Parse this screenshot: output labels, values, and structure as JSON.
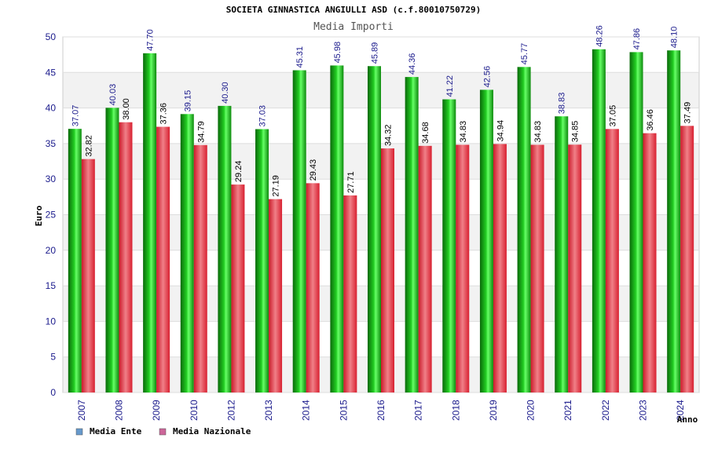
{
  "chart_data": {
    "type": "bar",
    "title": "SOCIETA GINNASTICA ANGIULLI ASD (c.f.80010750729)",
    "subtitle": "Media Importi",
    "ylabel": "Euro",
    "xlabel": "Anno",
    "ylim": [
      0,
      50
    ],
    "yticks": [
      0,
      5,
      10,
      15,
      20,
      25,
      30,
      35,
      40,
      45,
      50
    ],
    "grid": true,
    "legend_position": "bottom-left",
    "categories": [
      "2007",
      "2008",
      "2009",
      "2010",
      "2012",
      "2013",
      "2014",
      "2015",
      "2016",
      "2017",
      "2018",
      "2019",
      "2020",
      "2021",
      "2022",
      "2023",
      "2024"
    ],
    "series": [
      {
        "name": "Media Ente",
        "color": "#22aa22",
        "legend_color": "#6699cc",
        "values": [
          37.07,
          40.03,
          47.7,
          39.15,
          40.3,
          37.03,
          45.31,
          45.98,
          45.89,
          44.36,
          41.22,
          42.56,
          45.77,
          38.83,
          48.26,
          47.86,
          48.1
        ],
        "labels": [
          "37.07",
          "40.03",
          "47.70",
          "39.15",
          "40.30",
          "37.03",
          "45.31",
          "45.98",
          "45.89",
          "44.36",
          "41.22",
          "42.56",
          "45.77",
          "38.83",
          "48.26",
          "47.86",
          "48.10"
        ]
      },
      {
        "name": "Media Nazionale",
        "color": "#ee4455",
        "legend_color": "#cc6699",
        "values": [
          32.82,
          38.0,
          37.36,
          34.79,
          29.24,
          27.19,
          29.43,
          27.71,
          34.32,
          34.68,
          34.83,
          34.94,
          34.83,
          34.85,
          37.05,
          36.46,
          37.49
        ],
        "labels": [
          "32.82",
          "38.00",
          "37.36",
          "34.79",
          "29.24",
          "27.19",
          "29.43",
          "27.71",
          "34.32",
          "34.68",
          "34.83",
          "34.94",
          "34.83",
          "34.85",
          "37.05",
          "36.46",
          "37.49"
        ]
      }
    ]
  }
}
